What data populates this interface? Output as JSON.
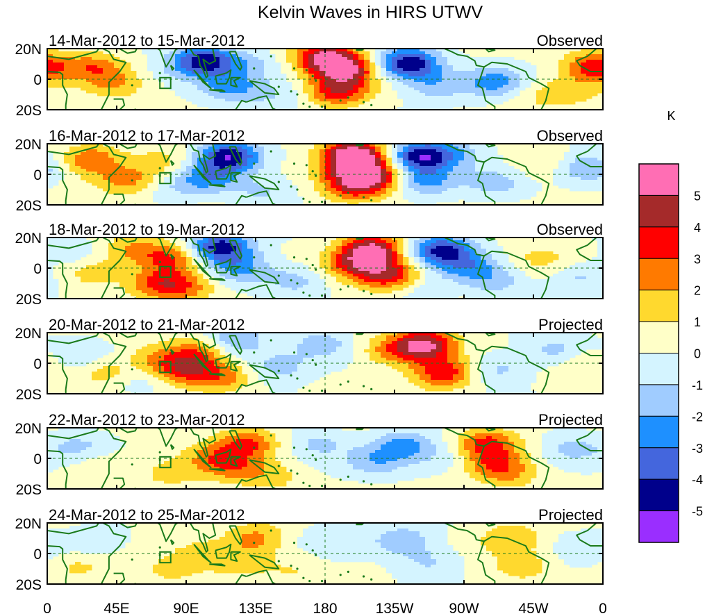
{
  "chart_data": {
    "type": "heatmap",
    "title": "Kelvin Waves in HIRS UTWV",
    "x_ticks": [
      "0",
      "45E",
      "90E",
      "135E",
      "180",
      "135W",
      "90W",
      "45W",
      "0"
    ],
    "y_ticks": [
      "20N",
      "0",
      "20S"
    ],
    "colorbar": {
      "unit": "K",
      "labels": [
        "5",
        "4",
        "3",
        "2",
        "1",
        "0",
        "-1",
        "-2",
        "-3",
        "-4",
        "-5"
      ],
      "colors": [
        "#ff6eb4",
        "#a52a2a",
        "#ff0000",
        "#ff7a00",
        "#ffd92e",
        "#ffffc8",
        "#d4f4ff",
        "#a0ccff",
        "#1e90ff",
        "#4466dd",
        "#00008b",
        "#9a2eff"
      ]
    },
    "panels": [
      {
        "date_range": "14-Mar-2012 to 15-Mar-2012",
        "label": "Observed",
        "blobs": [
          [
            180,
            14,
            4.8
          ],
          [
            194,
            6,
            4.2
          ],
          [
            188,
            -8,
            3.6
          ],
          [
            234,
            10,
            -5.2
          ],
          [
            290,
            -2,
            -2.6
          ],
          [
            252,
            -4,
            -1.8
          ],
          [
            102,
            12,
            -4.6
          ],
          [
            118,
            -5,
            -2.4
          ],
          [
            30,
            8,
            2.3
          ],
          [
            43,
            -3,
            1.5
          ],
          [
            355,
            8,
            3.6
          ],
          [
            340,
            -8,
            1.3
          ],
          [
            130,
            10,
            -1.2
          ],
          [
            82,
            6,
            -0.8
          ],
          [
            317,
            -10,
            0.9
          ],
          [
            148,
            -12,
            -1.0
          ]
        ]
      },
      {
        "date_range": "16-Mar-2012 to 17-Mar-2012",
        "label": "Observed",
        "blobs": [
          [
            198,
            14,
            5.2
          ],
          [
            200,
            4,
            3.9
          ],
          [
            198,
            -8,
            3.2
          ],
          [
            214,
            -2,
            2.8
          ],
          [
            242,
            12,
            -4.8
          ],
          [
            244,
            -4,
            -2.6
          ],
          [
            118,
            12,
            -4.9
          ],
          [
            104,
            -2,
            -2.6
          ],
          [
            75,
            8,
            1.3
          ],
          [
            28,
            10,
            2.6
          ],
          [
            52,
            -4,
            2.2
          ],
          [
            80,
            -9,
            -0.9
          ],
          [
            290,
            -6,
            -1.5
          ],
          [
            350,
            4,
            -2.4
          ],
          [
            320,
            8,
            1.0
          ],
          [
            140,
            -12,
            -1.2
          ],
          [
            265,
            14,
            -1.5
          ]
        ]
      },
      {
        "date_range": "18-Mar-2012 to 19-Mar-2012",
        "label": "Observed",
        "blobs": [
          [
            210,
            12,
            5.1
          ],
          [
            222,
            -5,
            3.8
          ],
          [
            200,
            2,
            3.0
          ],
          [
            80,
            6,
            3.0
          ],
          [
            72,
            -10,
            2.8
          ],
          [
            90,
            -12,
            2.0
          ],
          [
            55,
            12,
            1.8
          ],
          [
            30,
            -2,
            1.5
          ],
          [
            112,
            14,
            -4.7
          ],
          [
            125,
            0,
            -2.5
          ],
          [
            255,
            12,
            -4.3
          ],
          [
            272,
            2,
            -2.3
          ],
          [
            290,
            -8,
            -1.6
          ],
          [
            345,
            -6,
            -1.4
          ],
          [
            160,
            -8,
            -1.6
          ],
          [
            20,
            8,
            -1.0
          ],
          [
            320,
            6,
            1.1
          ],
          [
            240,
            -14,
            -1.0
          ]
        ]
      },
      {
        "date_range": "20-Mar-2012 to 21-Mar-2012",
        "label": "Projected",
        "blobs": [
          [
            245,
            12,
            4.9
          ],
          [
            256,
            -6,
            3.7
          ],
          [
            224,
            8,
            2.2
          ],
          [
            88,
            -4,
            3.3
          ],
          [
            100,
            8,
            2.5
          ],
          [
            112,
            -10,
            2.2
          ],
          [
            70,
            4,
            1.5
          ],
          [
            38,
            -6,
            1.5
          ],
          [
            120,
            14,
            -2.4
          ],
          [
            150,
            -2,
            -1.8
          ],
          [
            178,
            12,
            -1.7
          ],
          [
            292,
            -4,
            -1.5
          ],
          [
            330,
            8,
            -1.6
          ],
          [
            20,
            6,
            -1.2
          ],
          [
            350,
            0,
            1.0
          ],
          [
            60,
            -12,
            -0.8
          ]
        ]
      },
      {
        "date_range": "22-Mar-2012 to 23-Mar-2012",
        "label": "Projected",
        "blobs": [
          [
            285,
            10,
            3.2
          ],
          [
            290,
            -4,
            2.4
          ],
          [
            130,
            10,
            2.8
          ],
          [
            120,
            -6,
            2.0
          ],
          [
            108,
            2,
            1.6
          ],
          [
            80,
            -10,
            1.2
          ],
          [
            145,
            -12,
            1.3
          ],
          [
            300,
            -12,
            1.2
          ],
          [
            232,
            8,
            -2.6
          ],
          [
            212,
            -2,
            -1.7
          ],
          [
            175,
            10,
            -1.3
          ],
          [
            20,
            8,
            -1.3
          ],
          [
            340,
            6,
            -1.4
          ],
          [
            35,
            -6,
            1.0
          ],
          [
            260,
            0,
            -0.8
          ]
        ]
      },
      {
        "date_range": "24-Mar-2012 to 25-Mar-2012",
        "label": "Projected",
        "blobs": [
          [
            135,
            10,
            2.1
          ],
          [
            125,
            -6,
            1.4
          ],
          [
            300,
            10,
            1.8
          ],
          [
            308,
            -8,
            1.5
          ],
          [
            100,
            0,
            1.0
          ],
          [
            80,
            -12,
            1.0
          ],
          [
            230,
            8,
            -2.0
          ],
          [
            248,
            -6,
            -1.3
          ],
          [
            185,
            10,
            -1.0
          ],
          [
            30,
            8,
            -0.9
          ],
          [
            20,
            -8,
            1.1
          ],
          [
            350,
            4,
            -0.8
          ],
          [
            160,
            -10,
            0.9
          ]
        ]
      }
    ]
  }
}
